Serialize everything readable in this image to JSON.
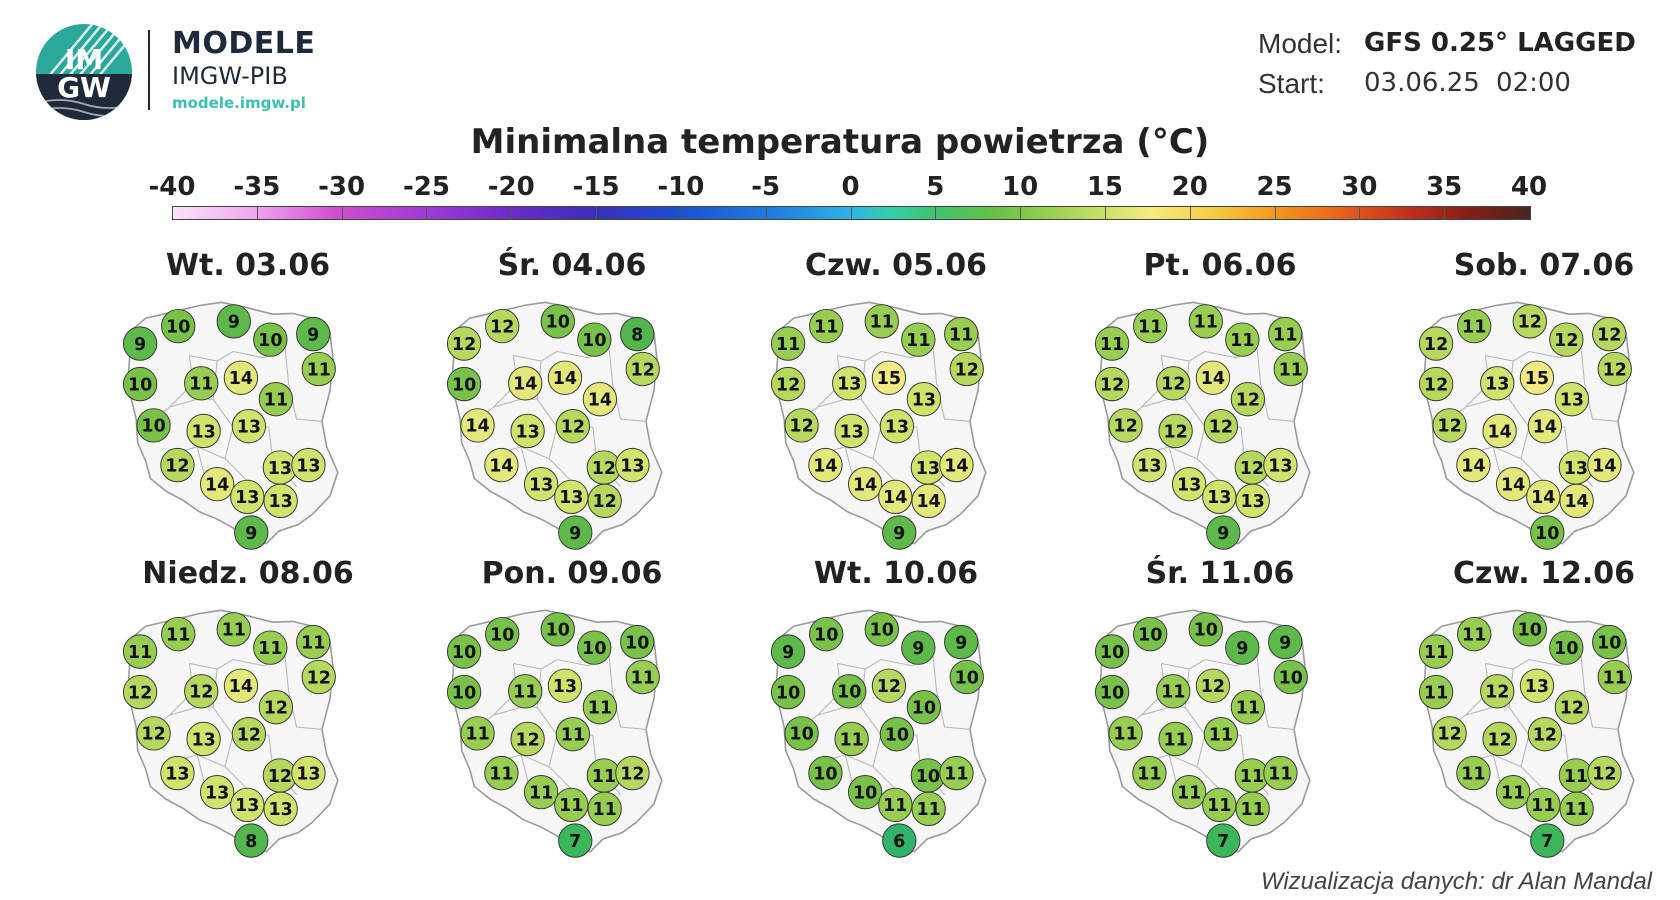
{
  "logo": {
    "disc_text_top": "IM",
    "disc_text_bottom": "GW",
    "title": "MODELE",
    "subtitle": "IMGW-PIB",
    "url": "modele.imgw.pl",
    "colors": {
      "teal": "#3dbfb0",
      "navy": "#1e2a3a"
    }
  },
  "meta": {
    "model_label": "Model:",
    "model_value": "GFS 0.25° LAGGED",
    "start_label": "Start:",
    "start_value": "03.06.25 02:00"
  },
  "title": "Minimalna temperatura powietrza (°C)",
  "scale": {
    "ticks": [
      "-40",
      "-35",
      "-30",
      "-25",
      "-20",
      "-15",
      "-10",
      "-5",
      "0",
      "5",
      "10",
      "15",
      "20",
      "25",
      "30",
      "35",
      "40"
    ],
    "min": -40,
    "max": 40
  },
  "credit": "Wizualizacja danych: dr Alan Mandal",
  "days": [
    {
      "label": "Wt. 03.06",
      "values": [
        9,
        10,
        9,
        10,
        9,
        11,
        10,
        10,
        11,
        14,
        11,
        13,
        13,
        12,
        13,
        13,
        14,
        13,
        13,
        9
      ]
    },
    {
      "label": "Śr. 04.06",
      "values": [
        12,
        12,
        10,
        10,
        8,
        12,
        10,
        14,
        14,
        14,
        14,
        13,
        12,
        14,
        12,
        13,
        13,
        13,
        12,
        9
      ]
    },
    {
      "label": "Czw. 05.06",
      "values": [
        11,
        11,
        11,
        11,
        11,
        12,
        12,
        12,
        13,
        15,
        13,
        13,
        13,
        14,
        13,
        14,
        14,
        14,
        14,
        9
      ]
    },
    {
      "label": "Pt. 06.06",
      "values": [
        11,
        11,
        11,
        11,
        11,
        11,
        12,
        12,
        12,
        14,
        12,
        12,
        12,
        13,
        12,
        13,
        13,
        13,
        13,
        9
      ]
    },
    {
      "label": "Sob. 07.06",
      "values": [
        12,
        11,
        12,
        12,
        12,
        12,
        12,
        12,
        13,
        15,
        13,
        14,
        14,
        14,
        13,
        14,
        14,
        14,
        14,
        10
      ]
    },
    {
      "label": "Niedz. 08.06",
      "values": [
        11,
        11,
        11,
        11,
        11,
        12,
        12,
        12,
        12,
        14,
        12,
        13,
        12,
        13,
        12,
        13,
        13,
        13,
        13,
        8
      ]
    },
    {
      "label": "Pon. 09.06",
      "values": [
        10,
        10,
        10,
        10,
        10,
        11,
        10,
        11,
        11,
        13,
        11,
        12,
        11,
        11,
        11,
        12,
        11,
        11,
        11,
        7
      ]
    },
    {
      "label": "Wt. 10.06",
      "values": [
        9,
        10,
        10,
        9,
        9,
        10,
        10,
        10,
        10,
        12,
        10,
        11,
        10,
        10,
        10,
        11,
        10,
        11,
        11,
        6
      ]
    },
    {
      "label": "Śr. 11.06",
      "values": [
        10,
        10,
        10,
        9,
        9,
        10,
        10,
        11,
        11,
        12,
        11,
        11,
        11,
        11,
        11,
        11,
        11,
        11,
        11,
        7
      ]
    },
    {
      "label": "Czw. 12.06",
      "values": [
        11,
        11,
        10,
        10,
        10,
        11,
        11,
        12,
        12,
        13,
        12,
        12,
        12,
        11,
        11,
        12,
        11,
        11,
        11,
        7
      ]
    }
  ]
}
